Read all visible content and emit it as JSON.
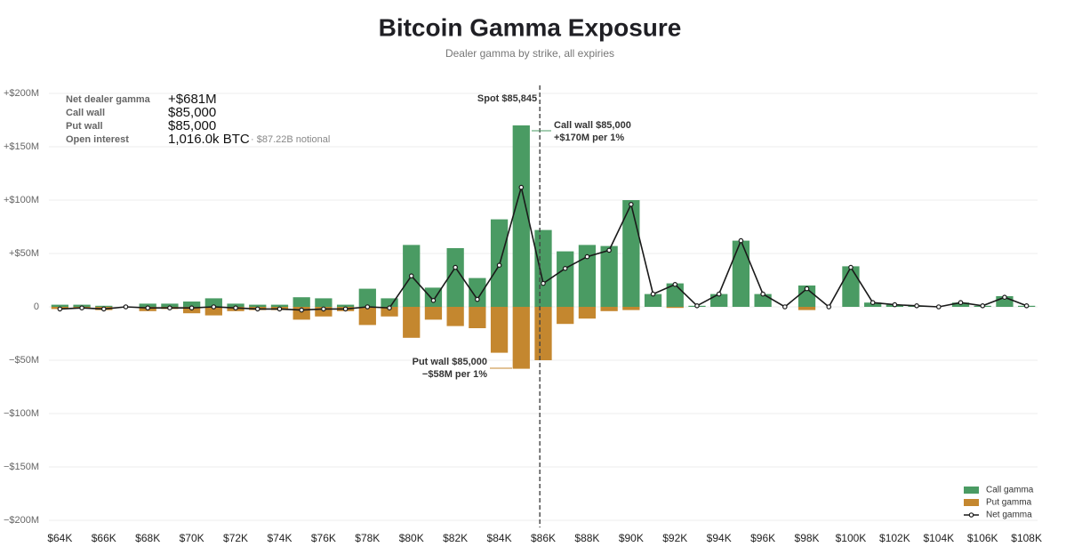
{
  "chart_data": {
    "type": "bar",
    "title": "Bitcoin Gamma Exposure",
    "subtitle": "Dealer gamma by strike, all expiries",
    "x": [
      64,
      65,
      66,
      67,
      68,
      69,
      70,
      71,
      72,
      73,
      74,
      75,
      76,
      77,
      78,
      79,
      80,
      81,
      82,
      83,
      84,
      85,
      86,
      87,
      88,
      89,
      90,
      91,
      92,
      93,
      94,
      95,
      96,
      97,
      98,
      99,
      100,
      101,
      102,
      103,
      104,
      105,
      106,
      107,
      108
    ],
    "xlim": [
      63.5,
      108.5
    ],
    "xticks": [
      {
        "value": 64,
        "label": "$64K"
      },
      {
        "value": 66,
        "label": "$66K"
      },
      {
        "value": 68,
        "label": "$68K"
      },
      {
        "value": 70,
        "label": "$70K"
      },
      {
        "value": 72,
        "label": "$72K"
      },
      {
        "value": 74,
        "label": "$74K"
      },
      {
        "value": 76,
        "label": "$76K"
      },
      {
        "value": 78,
        "label": "$78K"
      },
      {
        "value": 80,
        "label": "$80K"
      },
      {
        "value": 82,
        "label": "$82K"
      },
      {
        "value": 84,
        "label": "$84K"
      },
      {
        "value": 86,
        "label": "$86K"
      },
      {
        "value": 88,
        "label": "$88K"
      },
      {
        "value": 90,
        "label": "$90K"
      },
      {
        "value": 92,
        "label": "$92K"
      },
      {
        "value": 94,
        "label": "$94K"
      },
      {
        "value": 96,
        "label": "$96K"
      },
      {
        "value": 98,
        "label": "$98K"
      },
      {
        "value": 100,
        "label": "$100K"
      },
      {
        "value": 102,
        "label": "$102K"
      },
      {
        "value": 104,
        "label": "$104K"
      },
      {
        "value": 106,
        "label": "$106K"
      },
      {
        "value": 108,
        "label": "$108K"
      }
    ],
    "ylim": [
      -200,
      200
    ],
    "yticks": [
      {
        "value": 200,
        "label": "+$200M"
      },
      {
        "value": 150,
        "label": "+$150M"
      },
      {
        "value": 100,
        "label": "+$100M"
      },
      {
        "value": 50,
        "label": "+$50M"
      },
      0,
      {
        "value": -50,
        "label": "−$50M"
      },
      {
        "value": -100,
        "label": "−$100M"
      },
      {
        "value": -150,
        "label": "−$150M"
      },
      {
        "value": -200,
        "label": "−$200M"
      }
    ],
    "grid": true,
    "legend": "bottom-right",
    "series": [
      {
        "name": "Call gamma",
        "color": "#4a9b63",
        "type": "bar",
        "values": [
          2,
          2,
          1,
          0,
          3,
          3,
          5,
          8,
          3,
          2,
          2,
          9,
          8,
          2,
          17,
          8,
          58,
          18,
          55,
          27,
          82,
          170,
          72,
          52,
          58,
          57,
          100,
          12,
          22,
          1,
          12,
          62,
          12,
          0,
          20,
          0,
          38,
          4,
          2,
          1,
          0,
          4,
          1,
          10,
          1
        ]
      },
      {
        "name": "Put gamma",
        "color": "#c4872f",
        "type": "bar",
        "values": [
          -2,
          -1,
          -3,
          0,
          -4,
          -2,
          -6,
          -8,
          -4,
          -3,
          -3,
          -12,
          -9,
          -4,
          -17,
          -9,
          -29,
          -12,
          -18,
          -20,
          -43,
          -58,
          -50,
          -16,
          -11,
          -4,
          -3,
          0,
          -1,
          0,
          0,
          0,
          0,
          0,
          -3,
          0,
          0,
          0,
          0,
          0,
          0,
          0,
          0,
          0,
          0
        ]
      },
      {
        "name": "Net gamma",
        "color": "#1a1a1a",
        "type": "line",
        "values": [
          -2,
          -1,
          -2,
          0,
          -1,
          -1,
          -1,
          0,
          -1,
          -2,
          -2,
          -3,
          -2,
          -2,
          0,
          -1,
          29,
          6,
          37,
          7,
          39,
          112,
          22,
          36,
          47,
          53,
          96,
          12,
          21,
          1,
          12,
          62,
          12,
          0,
          17,
          0,
          37,
          4,
          2,
          1,
          0,
          4,
          1,
          9,
          1
        ]
      }
    ],
    "spot": {
      "value": 85.845,
      "label": "Spot $85,845"
    },
    "call_wall": {
      "lines": [
        "Call wall $85,000",
        "+$170M per 1%"
      ]
    },
    "put_wall": {
      "lines": [
        "Put wall $85,000",
        "−$58M per 1%"
      ]
    },
    "stats": [
      {
        "label": "Net dealer gamma",
        "value": "+$681M"
      },
      {
        "label": "Call wall",
        "value": "$85,000"
      },
      {
        "label": "Put wall",
        "value": "$85,000"
      },
      {
        "label": "Open interest",
        "value": "1,016.0k BTC",
        "note": "· $87.22B notional"
      }
    ]
  }
}
